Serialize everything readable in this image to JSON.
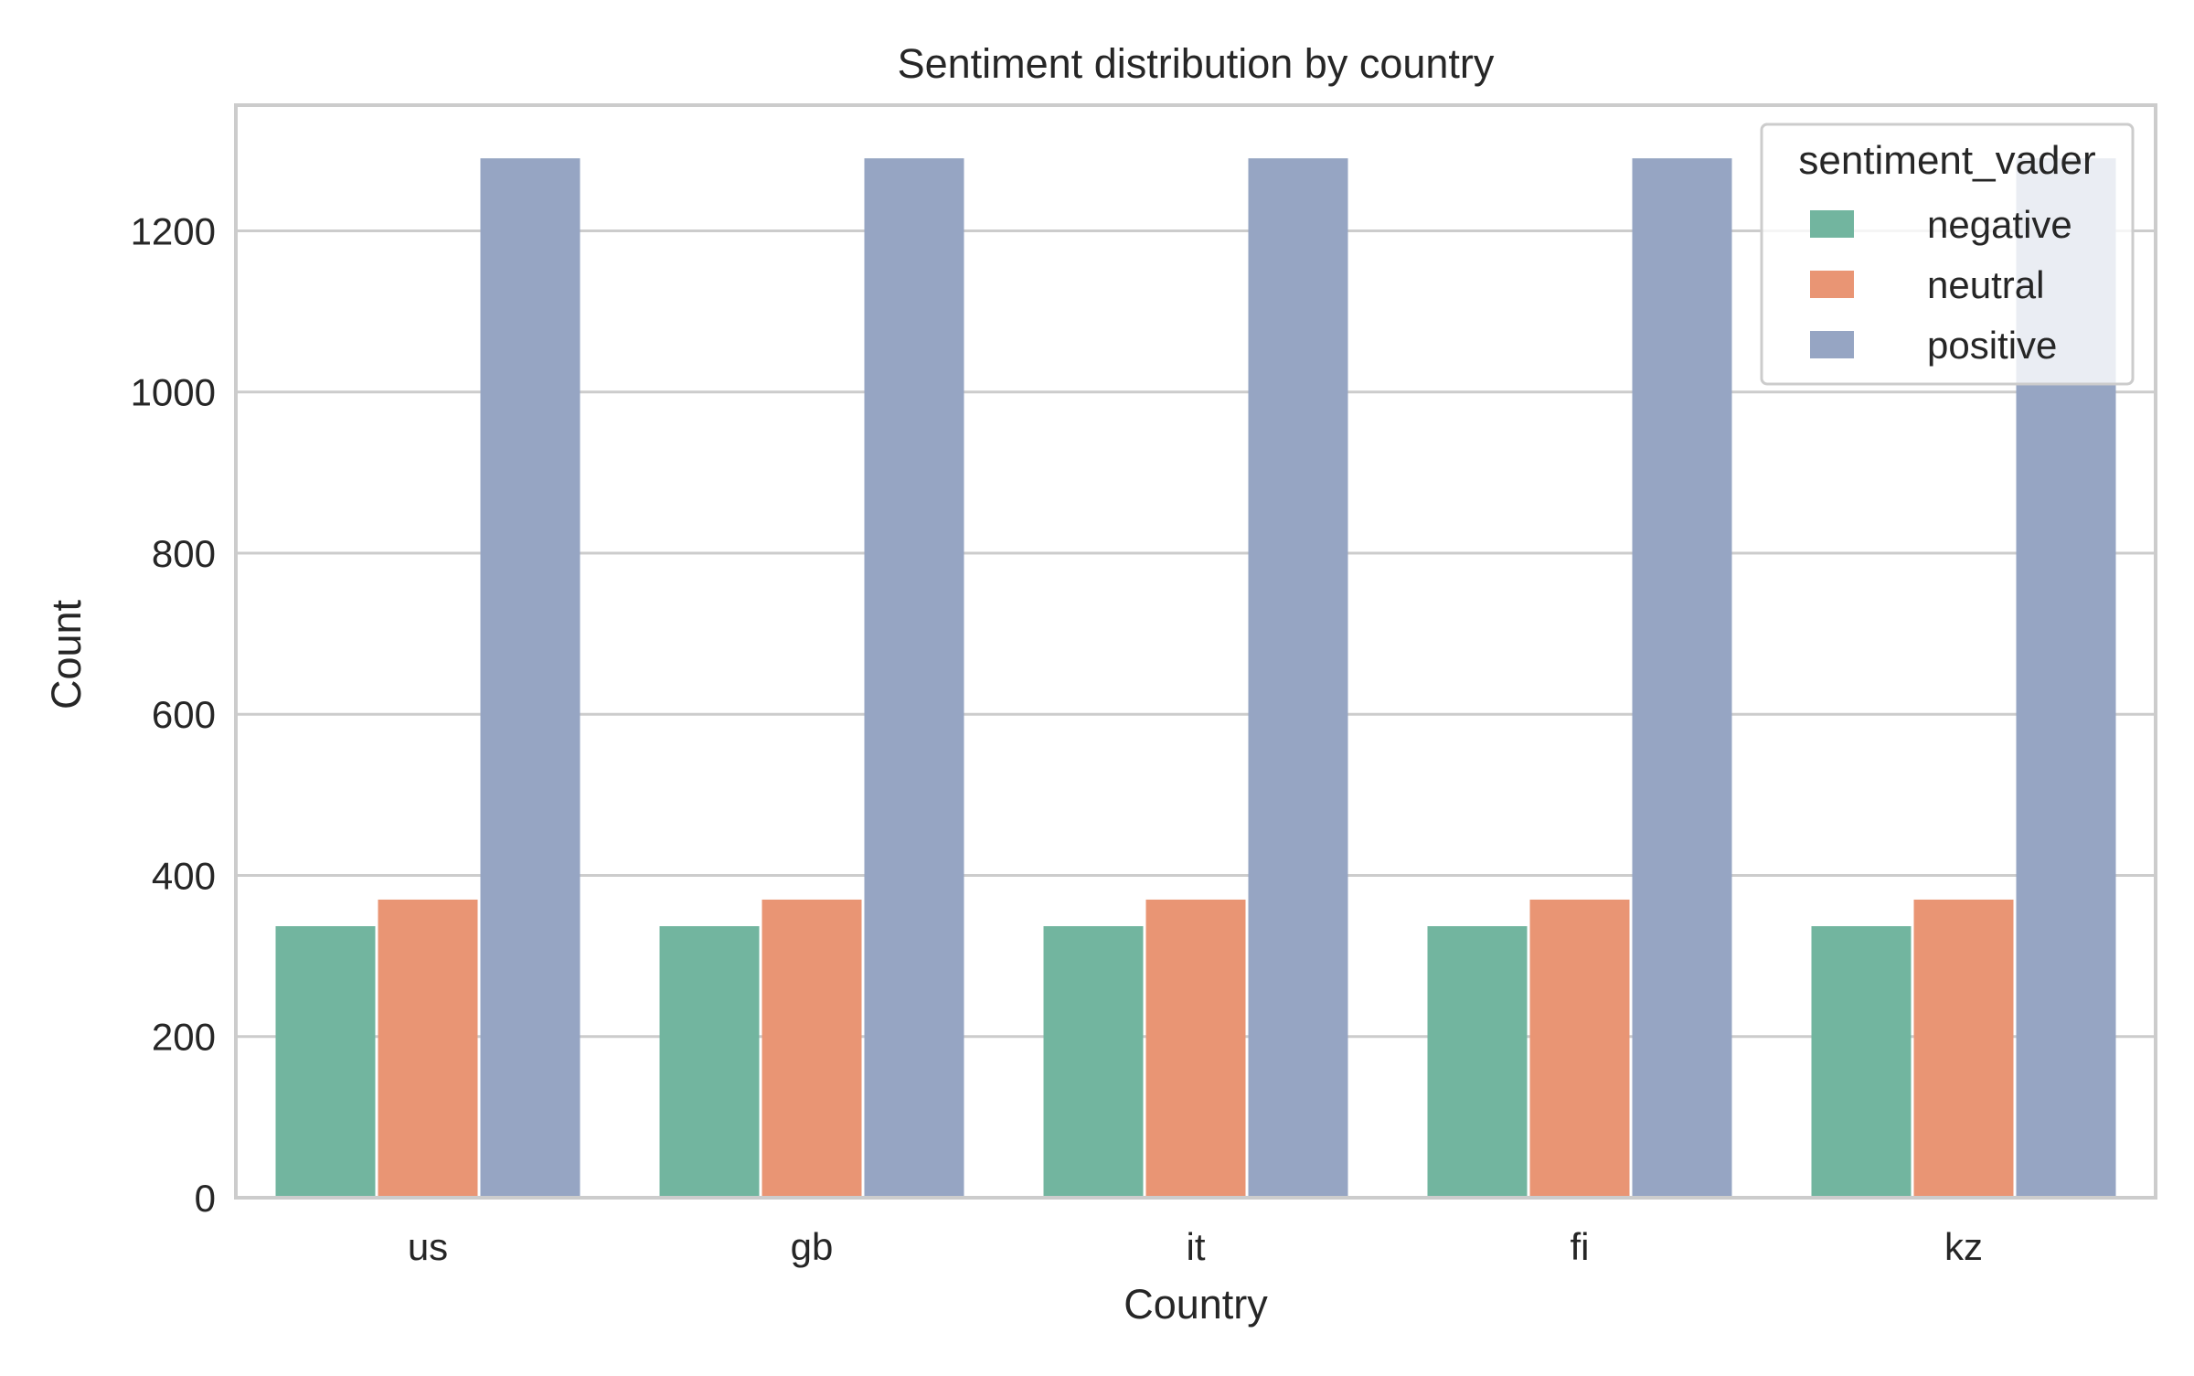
{
  "chart_data": {
    "type": "bar",
    "title": "Sentiment distribution by country",
    "xlabel": "Country",
    "ylabel": "Count",
    "categories": [
      "us",
      "gb",
      "it",
      "fi",
      "kz"
    ],
    "ylim": [
      0,
      1356
    ],
    "yticks": [
      0,
      200,
      400,
      600,
      800,
      1000,
      1200
    ],
    "grid": true,
    "legend": {
      "title": "sentiment_vader",
      "position": "top-right"
    },
    "series": [
      {
        "name": "negative",
        "color": "#72b59f",
        "values": [
          337,
          337,
          337,
          337,
          337
        ]
      },
      {
        "name": "neutral",
        "color": "#e99574",
        "values": [
          370,
          370,
          370,
          370,
          370
        ]
      },
      {
        "name": "positive",
        "color": "#96a5c3",
        "values": [
          1290,
          1290,
          1290,
          1290,
          1290
        ]
      }
    ]
  }
}
